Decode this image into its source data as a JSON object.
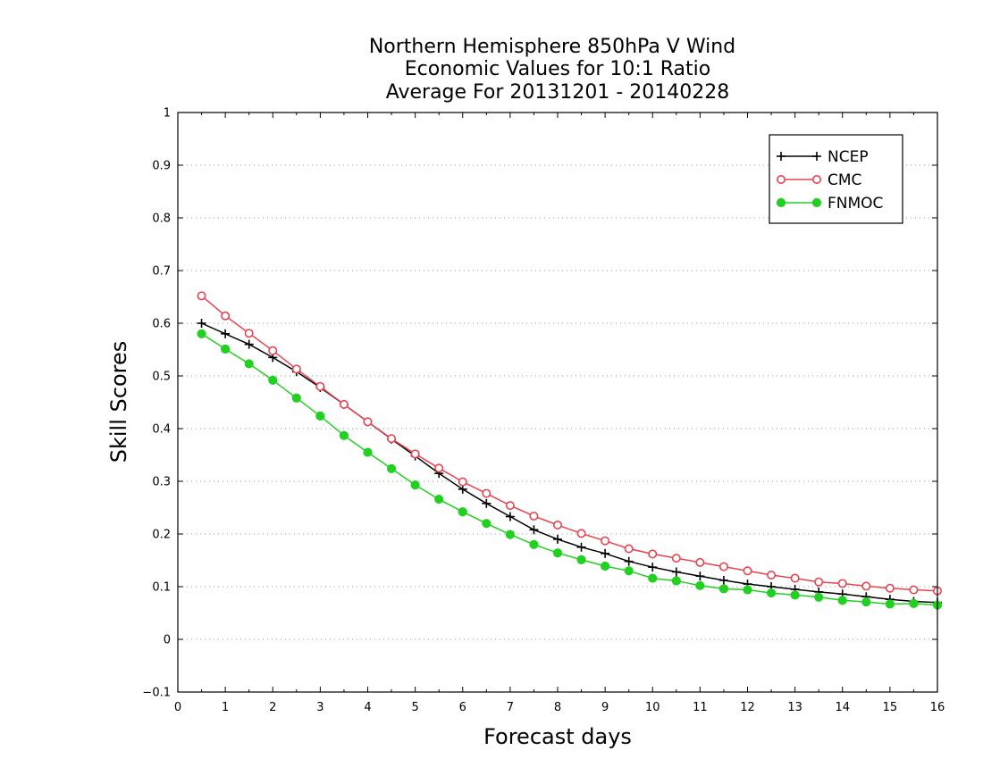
{
  "chart_data": {
    "type": "line",
    "title": "Northern Hemisphere 850hPa V Wind",
    "subtitle": "Economic Values for 10:1 Ratio",
    "subtitle2": "Average For 20131201 - 20140228",
    "xlabel": "Forecast days",
    "ylabel": "Skill Scores",
    "xlim": [
      0,
      16
    ],
    "ylim": [
      -0.1,
      1
    ],
    "x_ticks": [
      "0",
      "1",
      "2",
      "3",
      "4",
      "5",
      "6",
      "7",
      "8",
      "9",
      "10",
      "11",
      "12",
      "13",
      "14",
      "15",
      "16"
    ],
    "y_ticks": [
      "−0.1",
      "0",
      "0.1",
      "0.2",
      "0.3",
      "0.4",
      "0.5",
      "0.6",
      "0.7",
      "0.8",
      "0.9",
      "1"
    ],
    "grid": true,
    "legend_position": "top-right",
    "x": [
      0.5,
      1,
      1.5,
      2,
      2.5,
      3,
      3.5,
      4,
      4.5,
      5,
      5.5,
      6,
      6.5,
      7,
      7.5,
      8,
      8.5,
      9,
      9.5,
      10,
      10.5,
      11,
      11.5,
      12,
      12.5,
      13,
      13.5,
      14,
      14.5,
      15,
      15.5,
      16
    ],
    "series": [
      {
        "name": "NCEP",
        "color": "#000000",
        "marker": "plus",
        "values": [
          0.6,
          0.58,
          0.56,
          0.535,
          0.508,
          0.478,
          0.446,
          0.413,
          0.38,
          0.348,
          0.315,
          0.285,
          0.258,
          0.233,
          0.208,
          0.19,
          0.175,
          0.163,
          0.148,
          0.137,
          0.128,
          0.12,
          0.112,
          0.105,
          0.1,
          0.095,
          0.09,
          0.086,
          0.081,
          0.076,
          0.072,
          0.07
        ]
      },
      {
        "name": "CMC",
        "color": "#e8434f",
        "marker": "open-circle",
        "values": [
          0.652,
          0.614,
          0.581,
          0.548,
          0.513,
          0.48,
          0.446,
          0.413,
          0.381,
          0.352,
          0.325,
          0.299,
          0.277,
          0.254,
          0.234,
          0.217,
          0.201,
          0.187,
          0.172,
          0.162,
          0.154,
          0.146,
          0.138,
          0.13,
          0.122,
          0.116,
          0.109,
          0.106,
          0.101,
          0.097,
          0.094,
          0.092
        ]
      },
      {
        "name": "FNMOC",
        "color": "#22d022",
        "marker": "filled-circle",
        "values": [
          0.58,
          0.551,
          0.523,
          0.492,
          0.458,
          0.424,
          0.387,
          0.355,
          0.324,
          0.293,
          0.266,
          0.242,
          0.22,
          0.199,
          0.18,
          0.164,
          0.151,
          0.139,
          0.13,
          0.116,
          0.111,
          0.102,
          0.096,
          0.094,
          0.088,
          0.084,
          0.08,
          0.074,
          0.071,
          0.067,
          0.068,
          0.065
        ]
      }
    ]
  }
}
